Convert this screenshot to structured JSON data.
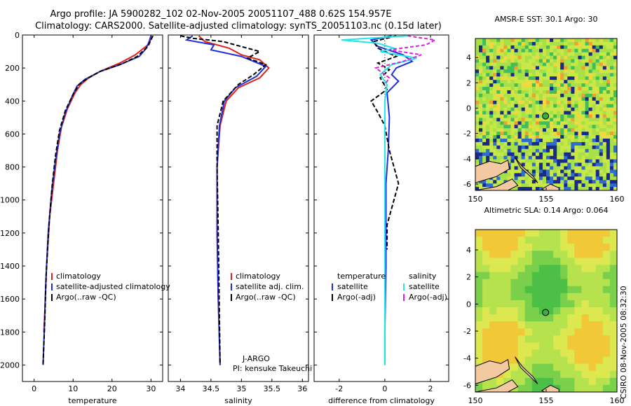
{
  "header": {
    "title_line1": "Argo profile: JA 5900282_102 02-Nov-2005 20051107_488 0.62S 154.957E",
    "title_line2": "Climatology: CARS2000. Satellite-adjusted climatology: synTS_20051103.nc (0.15d later)"
  },
  "footer": {
    "credit": "CSIRO 08-Nov-2005 08:32:30",
    "jargo": "J-ARGO",
    "pi": "PI: kensuke Takeuchi"
  },
  "colors": {
    "clim": "#e02020",
    "sat": "#1f2fe0",
    "argo": "#000000",
    "sal_sat": "#22e6e6",
    "sal_argo": "#e020e0"
  },
  "chart_data": [
    {
      "type": "line",
      "name": "temperature",
      "xlabel": "temperature",
      "ylabel": "",
      "xlim": [
        -3,
        33
      ],
      "ylim": [
        2100,
        0
      ],
      "xticks": [
        0,
        10,
        20,
        30
      ],
      "yticks": [
        0,
        200,
        400,
        600,
        800,
        1000,
        1200,
        1400,
        1600,
        1800,
        2000
      ],
      "legend": [
        "climatology",
        "satellite-adjusted climatology",
        "Argo(..raw -QC)"
      ],
      "series": [
        {
          "name": "climatology",
          "color": "clim",
          "x": [
            30.2,
            29.9,
            29.2,
            26,
            22,
            17,
            14,
            12,
            10.5,
            8.5,
            7,
            6,
            5,
            4,
            3.2,
            2.8,
            2.5
          ],
          "y": [
            5,
            30,
            60,
            120,
            170,
            220,
            260,
            300,
            350,
            450,
            560,
            700,
            900,
            1100,
            1400,
            1650,
            1800
          ]
        },
        {
          "name": "satellite-adjusted climatology",
          "color": "sat",
          "x": [
            30,
            29.5,
            28.8,
            27,
            22,
            17,
            13,
            11,
            9.8,
            8,
            6.5,
            5.5,
            4.5,
            3.6,
            3,
            2.6,
            2.3
          ],
          "y": [
            5,
            40,
            80,
            130,
            180,
            220,
            270,
            310,
            370,
            470,
            600,
            760,
            950,
            1200,
            1500,
            1800,
            2000
          ]
        },
        {
          "name": "Argo(..raw -QC)",
          "color": "argo",
          "x": [
            30.5,
            30,
            29.2,
            26.5,
            22.5,
            17,
            13.5,
            11.5,
            10,
            8,
            6.5,
            5.5,
            4.6,
            3.8,
            3.1,
            2.7,
            2.3
          ],
          "y": [
            5,
            30,
            70,
            130,
            175,
            220,
            265,
            300,
            360,
            460,
            580,
            730,
            920,
            1150,
            1450,
            1750,
            2000
          ]
        }
      ]
    },
    {
      "type": "line",
      "name": "salinity",
      "xlabel": "salinity",
      "ylabel": "",
      "xlim": [
        33.8,
        36.1
      ],
      "ylim": [
        2100,
        0
      ],
      "xticks": [
        34,
        34.5,
        35,
        35.5,
        36
      ],
      "legend": [
        "climatology",
        "satellite adj. clim.",
        "Argo(..raw -QC)"
      ],
      "series": [
        {
          "name": "climatology",
          "color": "clim",
          "x": [
            34.3,
            34.4,
            34.8,
            35.0,
            35.3,
            35.45,
            35.3,
            34.95,
            34.75,
            34.65,
            34.6,
            34.6,
            34.62,
            34.65
          ],
          "y": [
            5,
            40,
            80,
            120,
            150,
            200,
            260,
            320,
            400,
            550,
            800,
            1200,
            1600,
            2000
          ]
        },
        {
          "name": "satellite adj. clim.",
          "color": "sat",
          "x": [
            34.2,
            34.1,
            34.55,
            34.5,
            35.0,
            35.4,
            35.25,
            34.9,
            34.72,
            34.64,
            34.6,
            34.6,
            34.62,
            34.65
          ],
          "y": [
            5,
            30,
            60,
            90,
            130,
            190,
            250,
            320,
            400,
            550,
            800,
            1200,
            1600,
            2000
          ]
        },
        {
          "name": "Argo(..raw -QC)",
          "color": "argo",
          "x": [
            34.0,
            34.2,
            34.7,
            35.0,
            35.3,
            35.1,
            35.4,
            35.2,
            34.95,
            34.7,
            34.6,
            34.6,
            34.62,
            34.65
          ],
          "y": [
            5,
            20,
            40,
            70,
            100,
            140,
            180,
            240,
            300,
            400,
            550,
            800,
            1200,
            2000
          ]
        }
      ]
    },
    {
      "type": "line",
      "name": "difference",
      "xlabel": "difference from climatology",
      "ylabel": "",
      "xlim": [
        -3.1,
        2.8
      ],
      "ylim": [
        2100,
        0
      ],
      "xticks": [
        -2,
        0,
        2
      ],
      "legend_temperature": [
        "temperature",
        "satellite",
        "Argo(-adj)"
      ],
      "legend_salinity": [
        "salinity",
        "satellite",
        "Argo(-adj)"
      ],
      "series": [
        {
          "name": "temperature satellite",
          "color": "sat",
          "x": [
            0.3,
            -0.6,
            -0.3,
            0.8,
            1.2,
            0.5,
            0.3,
            0.6,
            0.1,
            0.2,
            0.15,
            0.05,
            0.05,
            0.05,
            0.0,
            0.0
          ],
          "y": [
            5,
            30,
            70,
            120,
            160,
            200,
            240,
            280,
            350,
            500,
            700,
            900,
            1100,
            1400,
            1800,
            2000
          ]
        },
        {
          "name": "temperature Argo(-adj)",
          "color": "argo",
          "x": [
            0.5,
            -0.5,
            -0.3,
            0.5,
            -0.3,
            0.2,
            -0.2,
            0.1,
            -0.6,
            -0.3,
            0.0,
            0.2,
            0.6,
            0.4,
            0.1,
            0.1
          ],
          "y": [
            5,
            40,
            80,
            130,
            170,
            210,
            260,
            330,
            400,
            470,
            550,
            700,
            900,
            1000,
            1150,
            1300
          ]
        },
        {
          "name": "salinity satellite",
          "color": "sal_sat",
          "x": [
            1.0,
            -1.9,
            -0.3,
            0.4,
            -0.2,
            1.4,
            0.3,
            -0.2,
            0.1,
            0.0,
            0.0,
            0.0,
            0.0,
            0.0,
            0.0
          ],
          "y": [
            5,
            30,
            50,
            80,
            100,
            140,
            180,
            240,
            300,
            400,
            600,
            900,
            1200,
            1600,
            2000
          ]
        },
        {
          "name": "salinity Argo(-adj)",
          "color": "sal_argo",
          "x": [
            1.0,
            2.2,
            1.8,
            0.2,
            1.6,
            0.8,
            -0.4,
            0.2,
            0.0
          ],
          "y": [
            5,
            30,
            60,
            90,
            120,
            160,
            200,
            260,
            300
          ]
        }
      ]
    },
    {
      "type": "heatmap",
      "name": "sst_map",
      "title": "AMSR-E SST: 30.1 Argo: 30",
      "xlim": [
        150,
        160
      ],
      "ylim": [
        -6.5,
        5.5
      ],
      "xticks": [
        150,
        155,
        160
      ],
      "yticks": [
        4,
        2,
        0,
        -2,
        -4,
        -6
      ],
      "marker": {
        "lon": 154.957,
        "lat": -0.62
      }
    },
    {
      "type": "heatmap",
      "name": "sla_map",
      "title": "Altimetric SLA: 0.14 Argo: 0.064",
      "xlim": [
        150,
        160
      ],
      "ylim": [
        -6.5,
        5.5
      ],
      "xticks": [
        150,
        155,
        160
      ],
      "yticks": [
        4,
        2,
        0,
        -2,
        -4,
        -6
      ],
      "marker": {
        "lon": 154.957,
        "lat": -0.62
      }
    }
  ]
}
